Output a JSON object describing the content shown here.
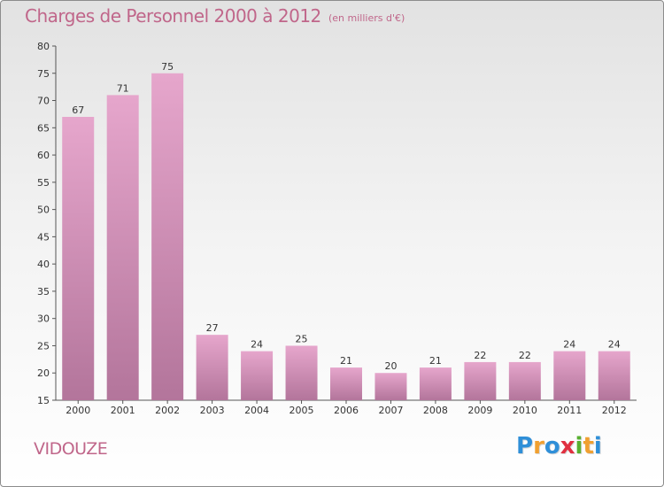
{
  "header": {
    "title": "Charges de Personnel 2000 à 2012",
    "subtitle": "(en milliers d'€)"
  },
  "footer": {
    "commune": "VIDOUZE",
    "logo_letters": [
      "P",
      "r",
      "o",
      "x",
      "i",
      "t",
      "i"
    ],
    "logo_colors": [
      "#2f8fd8",
      "#f0a030",
      "#2f8fd8",
      "#e03040",
      "#58b030",
      "#f0a030",
      "#2f8fd8"
    ]
  },
  "chart_data": {
    "type": "bar",
    "categories": [
      "2000",
      "2001",
      "2002",
      "2003",
      "2004",
      "2005",
      "2006",
      "2007",
      "2008",
      "2009",
      "2010",
      "2011",
      "2012"
    ],
    "values": [
      67,
      71,
      75,
      27,
      24,
      25,
      21,
      20,
      21,
      22,
      22,
      24,
      24
    ],
    "data_labels": [
      "67",
      "71",
      "75",
      "27",
      "24",
      "25",
      "21",
      "20",
      "21",
      "22",
      "22",
      "24",
      "24"
    ],
    "yticks": [
      "15",
      "20",
      "25",
      "30",
      "35",
      "40",
      "45",
      "50",
      "55",
      "60",
      "65",
      "70",
      "75",
      "80"
    ],
    "ylim": [
      15,
      80
    ],
    "grid": false,
    "colors": {
      "bar_top": "#e6a6cc",
      "bar_bottom": "#b3759b",
      "axis": "#555555",
      "text": "#333333"
    }
  }
}
